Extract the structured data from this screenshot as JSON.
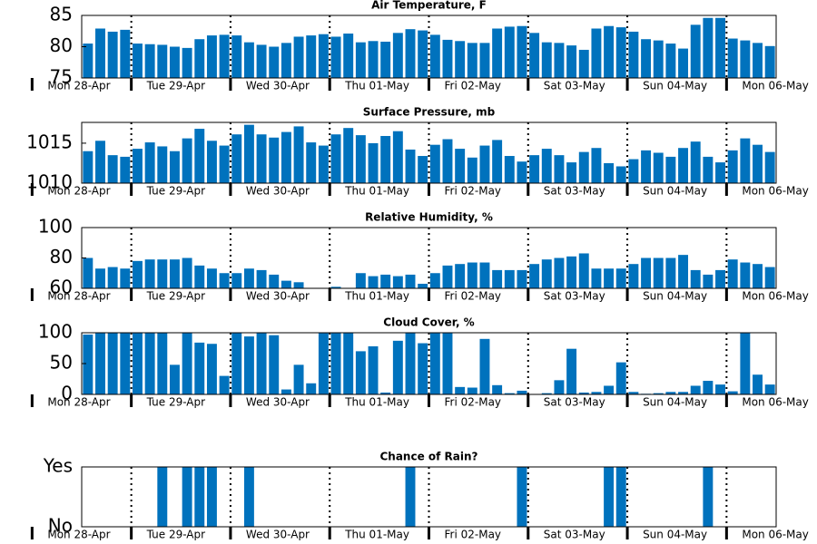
{
  "chart_data": [
    {
      "type": "bar",
      "title": "Air Temperature, F",
      "color": "#0072bd",
      "categories": [
        null,
        null,
        null,
        null,
        null,
        null,
        null,
        null,
        null,
        null,
        null,
        null,
        null,
        null,
        null,
        null,
        null,
        null,
        null,
        null,
        null,
        null,
        null,
        null,
        null,
        null,
        null,
        null,
        null,
        null,
        null,
        null,
        null,
        null,
        null,
        null,
        null,
        null,
        null,
        null,
        null,
        null,
        null,
        null,
        null,
        null,
        null,
        null,
        null,
        null,
        null,
        null,
        null,
        null,
        null,
        null
      ],
      "values": [
        80.5,
        82.9,
        82.4,
        82.7,
        80.5,
        80.4,
        80.3,
        80.0,
        79.8,
        81.2,
        81.8,
        81.9,
        81.8,
        80.7,
        80.3,
        80.0,
        80.6,
        81.6,
        81.8,
        82.0,
        81.6,
        82.1,
        80.7,
        80.9,
        80.8,
        82.2,
        82.8,
        82.6,
        81.9,
        81.1,
        80.9,
        80.6,
        80.6,
        82.9,
        83.2,
        83.3,
        82.2,
        80.7,
        80.6,
        80.2,
        79.5,
        82.9,
        83.3,
        83.1,
        82.4,
        81.2,
        81.0,
        80.5,
        79.7,
        83.5,
        84.6,
        84.6,
        81.3,
        81.0,
        80.6,
        80.1
      ],
      "xlim": [
        0,
        56
      ],
      "xticks": [
        {
          "value": -4,
          "label": "Mon 28-Apr"
        },
        {
          "value": 4,
          "label": "Tue 29-Apr"
        },
        {
          "value": 12,
          "label": "Wed 30-Apr"
        },
        {
          "value": 20,
          "label": "Thu 01-May"
        },
        {
          "value": 28,
          "label": "Fri 02-May"
        },
        {
          "value": 36,
          "label": "Sat 03-May"
        },
        {
          "value": 44,
          "label": "Sun 04-May"
        },
        {
          "value": 52,
          "label": "Mon 06-May"
        }
      ],
      "ylim": [
        75,
        85
      ],
      "yticks": [
        75,
        80,
        85
      ]
    },
    {
      "type": "bar",
      "title": "Surface Pressure, mb",
      "color": "#0072bd",
      "categories": [
        null,
        null,
        null,
        null,
        null,
        null,
        null,
        null,
        null,
        null,
        null,
        null,
        null,
        null,
        null,
        null,
        null,
        null,
        null,
        null,
        null,
        null,
        null,
        null,
        null,
        null,
        null,
        null,
        null,
        null,
        null,
        null,
        null,
        null,
        null,
        null,
        null,
        null,
        null,
        null,
        null,
        null,
        null,
        null,
        null,
        null,
        null,
        null,
        null,
        null,
        null,
        null,
        null,
        null,
        null,
        null
      ],
      "values": [
        1014.0,
        1015.3,
        1013.5,
        1013.3,
        1014.3,
        1015.1,
        1014.6,
        1014.0,
        1015.6,
        1016.8,
        1015.3,
        1014.7,
        1016.1,
        1017.3,
        1016.1,
        1015.7,
        1016.4,
        1017.1,
        1015.1,
        1014.7,
        1016.1,
        1016.9,
        1016.0,
        1015.0,
        1015.9,
        1016.5,
        1014.2,
        1013.4,
        1014.8,
        1015.5,
        1014.3,
        1013.2,
        1014.7,
        1015.4,
        1013.4,
        1012.7,
        1013.5,
        1014.3,
        1013.5,
        1012.6,
        1013.9,
        1014.4,
        1012.5,
        1012.1,
        1013.0,
        1014.1,
        1013.8,
        1013.3,
        1014.4,
        1015.2,
        1013.3,
        1012.6,
        1014.1,
        1015.6,
        1014.8,
        1013.9
      ],
      "xlim": [
        0,
        56
      ],
      "xticks": [
        {
          "value": -4,
          "label": "Mon 28-Apr"
        },
        {
          "value": 4,
          "label": "Tue 29-Apr"
        },
        {
          "value": 12,
          "label": "Wed 30-Apr"
        },
        {
          "value": 20,
          "label": "Thu 01-May"
        },
        {
          "value": 28,
          "label": "Fri 02-May"
        },
        {
          "value": 36,
          "label": "Sat 03-May"
        },
        {
          "value": 44,
          "label": "Sun 04-May"
        },
        {
          "value": 52,
          "label": "Mon 06-May"
        }
      ],
      "ylim": [
        1010,
        1017.6
      ],
      "yticks": [
        1010,
        1015
      ]
    },
    {
      "type": "bar",
      "title": "Relative Humidity, %",
      "color": "#0072bd",
      "categories": [
        null,
        null,
        null,
        null,
        null,
        null,
        null,
        null,
        null,
        null,
        null,
        null,
        null,
        null,
        null,
        null,
        null,
        null,
        null,
        null,
        null,
        null,
        null,
        null,
        null,
        null,
        null,
        null,
        null,
        null,
        null,
        null,
        null,
        null,
        null,
        null,
        null,
        null,
        null,
        null,
        null,
        null,
        null,
        null,
        null,
        null,
        null,
        null,
        null,
        null,
        null,
        null,
        null,
        null,
        null,
        null
      ],
      "values": [
        80,
        73,
        74,
        73,
        78,
        79,
        79,
        79,
        80,
        75,
        73,
        70,
        70,
        73,
        72,
        69,
        65,
        64,
        58,
        57,
        61,
        59,
        70,
        68,
        69,
        68,
        69,
        63,
        70,
        75,
        76,
        77,
        77,
        72,
        72,
        72,
        76,
        79,
        80,
        81,
        83,
        73,
        73,
        73,
        76,
        80,
        80,
        80,
        82,
        72,
        69,
        72,
        79,
        77,
        76,
        74
      ],
      "xlim": [
        0,
        56
      ],
      "xticks": [
        {
          "value": -4,
          "label": "Mon 28-Apr"
        },
        {
          "value": 4,
          "label": "Tue 29-Apr"
        },
        {
          "value": 12,
          "label": "Wed 30-Apr"
        },
        {
          "value": 20,
          "label": "Thu 01-May"
        },
        {
          "value": 28,
          "label": "Fri 02-May"
        },
        {
          "value": 36,
          "label": "Sat 03-May"
        },
        {
          "value": 44,
          "label": "Sun 04-May"
        },
        {
          "value": 52,
          "label": "Mon 06-May"
        }
      ],
      "ylim": [
        60,
        100
      ],
      "yticks": [
        60,
        80,
        100
      ]
    },
    {
      "type": "bar",
      "title": "Cloud Cover, %",
      "color": "#0072bd",
      "categories": [
        null,
        null,
        null,
        null,
        null,
        null,
        null,
        null,
        null,
        null,
        null,
        null,
        null,
        null,
        null,
        null,
        null,
        null,
        null,
        null,
        null,
        null,
        null,
        null,
        null,
        null,
        null,
        null,
        null,
        null,
        null,
        null,
        null,
        null,
        null,
        null,
        null,
        null,
        null,
        null,
        null,
        null,
        null,
        null,
        null,
        null,
        null,
        null,
        null,
        null,
        null,
        null,
        null,
        null,
        null,
        null
      ],
      "values": [
        97,
        100,
        100,
        100,
        100,
        100,
        100,
        48,
        100,
        84,
        82,
        30,
        100,
        94,
        100,
        96,
        8,
        48,
        18,
        100,
        100,
        100,
        70,
        78,
        3,
        87,
        100,
        83,
        100,
        100,
        12,
        11,
        90,
        15,
        2,
        6,
        0,
        2,
        23,
        74,
        3,
        4,
        14,
        52,
        4,
        1,
        2,
        4,
        4,
        14,
        22,
        16,
        5,
        100,
        32,
        16
      ],
      "xlim": [
        0,
        56
      ],
      "xticks": [
        {
          "value": -4,
          "label": "Mon 28-Apr"
        },
        {
          "value": 4,
          "label": "Tue 29-Apr"
        },
        {
          "value": 12,
          "label": "Wed 30-Apr"
        },
        {
          "value": 20,
          "label": "Thu 01-May"
        },
        {
          "value": 28,
          "label": "Fri 02-May"
        },
        {
          "value": 36,
          "label": "Sat 03-May"
        },
        {
          "value": 44,
          "label": "Sun 04-May"
        },
        {
          "value": 52,
          "label": "Mon 06-May"
        }
      ],
      "ylim": [
        0,
        100
      ],
      "yticks": [
        0,
        50,
        100
      ]
    },
    {
      "type": "bar",
      "title": "Chance of Rain?",
      "color": "#0072bd",
      "categories": [
        null,
        null,
        null,
        null,
        null,
        null,
        null,
        null,
        null,
        null,
        null,
        null,
        null,
        null,
        null,
        null,
        null,
        null,
        null,
        null,
        null,
        null,
        null,
        null,
        null,
        null,
        null,
        null,
        null,
        null,
        null,
        null,
        null,
        null,
        null,
        null,
        null,
        null,
        null,
        null,
        null,
        null,
        null,
        null,
        null,
        null,
        null,
        null,
        null,
        null,
        null,
        null,
        null,
        null,
        null,
        null
      ],
      "values": [
        0,
        0,
        0,
        0,
        0,
        0,
        1,
        0,
        1,
        1,
        1,
        0,
        0,
        1,
        0,
        0,
        0,
        0,
        0,
        0,
        0,
        0,
        0,
        0,
        0,
        0,
        1,
        0,
        0,
        0,
        0,
        0,
        0,
        0,
        0,
        1,
        0,
        0,
        0,
        0,
        0,
        0,
        1,
        1,
        0,
        0,
        0,
        0,
        0,
        0,
        1,
        0,
        0,
        0,
        0,
        0
      ],
      "xlim": [
        0,
        56
      ],
      "xticks": [
        {
          "value": -4,
          "label": "Mon 28-Apr"
        },
        {
          "value": 4,
          "label": "Tue 29-Apr"
        },
        {
          "value": 12,
          "label": "Wed 30-Apr"
        },
        {
          "value": 20,
          "label": "Thu 01-May"
        },
        {
          "value": 28,
          "label": "Fri 02-May"
        },
        {
          "value": 36,
          "label": "Sat 03-May"
        },
        {
          "value": 44,
          "label": "Sun 04-May"
        },
        {
          "value": 52,
          "label": "Mon 06-May"
        }
      ],
      "ylim": [
        0,
        1
      ],
      "yticks": [
        {
          "value": 1,
          "label": "Yes"
        },
        {
          "value": 0,
          "label": "No"
        }
      ]
    }
  ]
}
